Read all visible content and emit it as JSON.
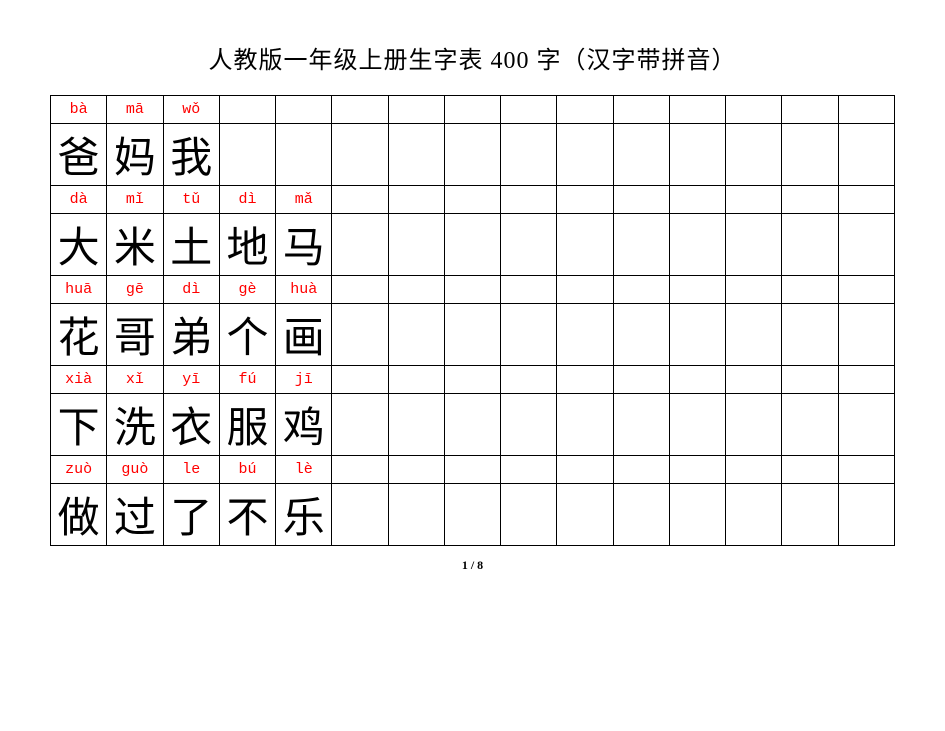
{
  "title": "人教版一年级上册生字表 400 字（汉字带拼音）",
  "page_number": "1 / 8",
  "columns": 15,
  "rows": [
    {
      "pinyin": [
        "bà",
        "mā",
        "wǒ",
        "",
        "",
        "",
        "",
        "",
        "",
        "",
        "",
        "",
        "",
        "",
        ""
      ],
      "chars": [
        "爸",
        "妈",
        "我",
        "",
        "",
        "",
        "",
        "",
        "",
        "",
        "",
        "",
        "",
        "",
        ""
      ]
    },
    {
      "pinyin": [
        "dà",
        "mǐ",
        "tǔ",
        "dì",
        "mǎ",
        "",
        "",
        "",
        "",
        "",
        "",
        "",
        "",
        "",
        ""
      ],
      "chars": [
        "大",
        "米",
        "土",
        "地",
        "马",
        "",
        "",
        "",
        "",
        "",
        "",
        "",
        "",
        "",
        ""
      ]
    },
    {
      "pinyin": [
        "huā",
        "gē",
        "dì",
        "gè",
        "huà",
        "",
        "",
        "",
        "",
        "",
        "",
        "",
        "",
        "",
        ""
      ],
      "chars": [
        "花",
        "哥",
        "弟",
        "个",
        "画",
        "",
        "",
        "",
        "",
        "",
        "",
        "",
        "",
        "",
        ""
      ]
    },
    {
      "pinyin": [
        "xià",
        "xǐ",
        "yī",
        "fú",
        "jī",
        "",
        "",
        "",
        "",
        "",
        "",
        "",
        "",
        "",
        ""
      ],
      "chars": [
        "下",
        "洗",
        "衣",
        "服",
        "鸡",
        "",
        "",
        "",
        "",
        "",
        "",
        "",
        "",
        "",
        ""
      ]
    },
    {
      "pinyin": [
        "zuò",
        "guò",
        "le",
        "bú",
        "lè",
        "",
        "",
        "",
        "",
        "",
        "",
        "",
        "",
        "",
        ""
      ],
      "chars": [
        "做",
        "过",
        "了",
        "不",
        "乐",
        "",
        "",
        "",
        "",
        "",
        "",
        "",
        "",
        "",
        ""
      ]
    }
  ],
  "colors": {
    "pinyin": "#ff0000",
    "char": "#000000",
    "border": "#000000",
    "background": "#ffffff"
  }
}
